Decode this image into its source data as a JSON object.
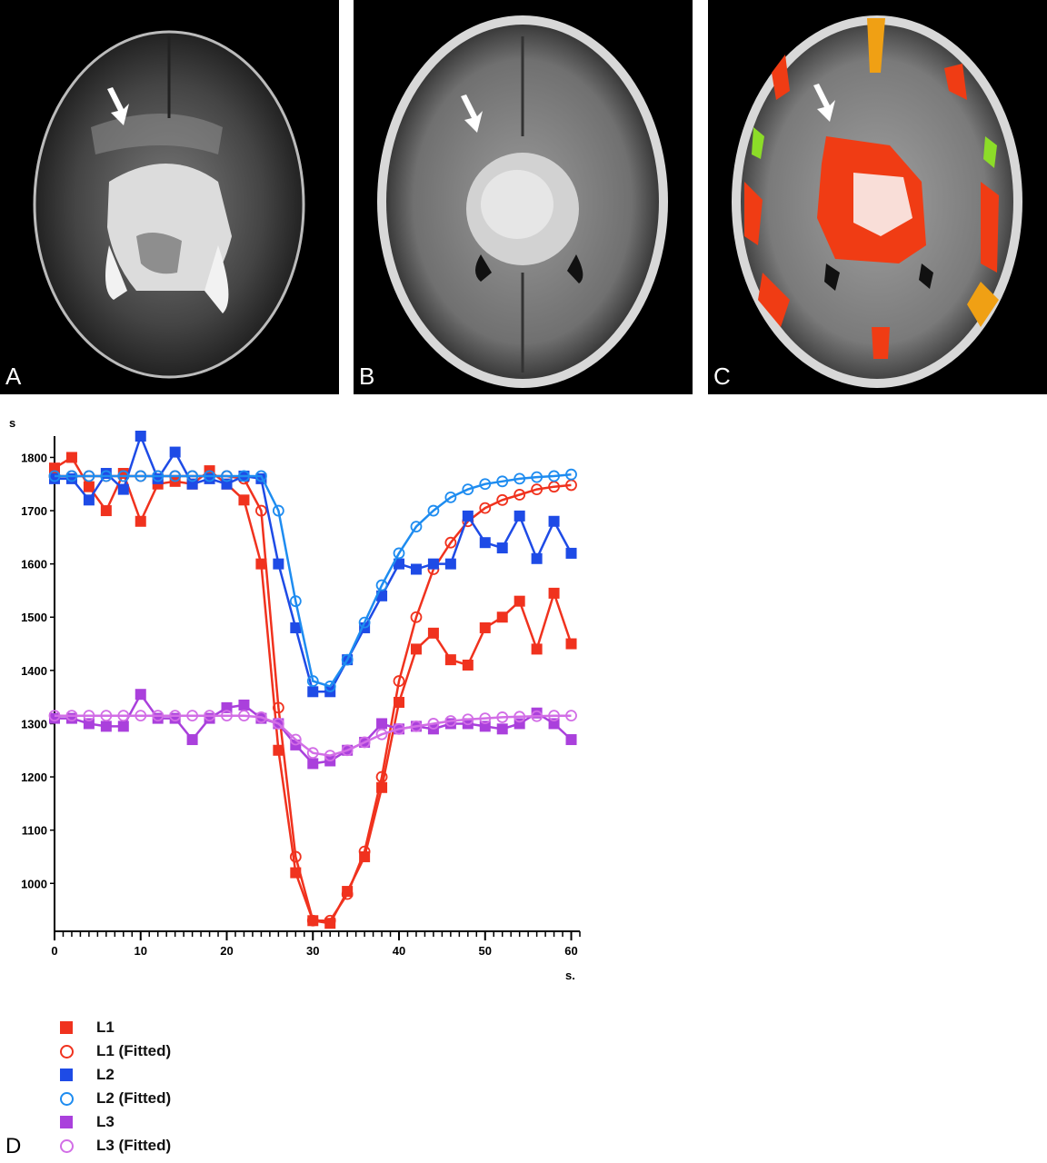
{
  "panels": {
    "a_label": "A",
    "b_label": "B",
    "c_label": "C",
    "d_label": "D"
  },
  "chart_data": {
    "type": "line",
    "title": "",
    "ylabel": "s",
    "xlabel": "s.",
    "xlim": [
      0,
      61
    ],
    "ylim": [
      910,
      1840
    ],
    "xticks": [
      0,
      10,
      20,
      30,
      40,
      50,
      60
    ],
    "yticks": [
      1000,
      1100,
      1200,
      1300,
      1400,
      1500,
      1600,
      1700,
      1800
    ],
    "x": [
      0,
      2,
      4,
      6,
      8,
      10,
      12,
      14,
      16,
      18,
      20,
      22,
      24,
      26,
      28,
      30,
      32,
      34,
      36,
      38,
      40,
      42,
      44,
      46,
      48,
      50,
      52,
      54,
      56,
      58,
      60
    ],
    "series": [
      {
        "name": "L1",
        "color": "#f0321e",
        "marker": "square",
        "values": [
          1780,
          1800,
          1745,
          1700,
          1770,
          1680,
          1750,
          1755,
          1750,
          1775,
          1750,
          1720,
          1600,
          1250,
          1020,
          930,
          925,
          985,
          1050,
          1180,
          1340,
          1440,
          1470,
          1420,
          1410,
          1480,
          1500,
          1530,
          1440,
          1545,
          1450
        ]
      },
      {
        "name": "L1 (Fitted)",
        "color": "#f0321e",
        "marker": "circle",
        "values": [
          1765,
          1765,
          1765,
          1765,
          1765,
          1765,
          1765,
          1765,
          1765,
          1765,
          1765,
          1760,
          1700,
          1330,
          1050,
          930,
          930,
          980,
          1060,
          1200,
          1380,
          1500,
          1590,
          1640,
          1680,
          1705,
          1720,
          1730,
          1740,
          1745,
          1748
        ]
      },
      {
        "name": "L2",
        "color": "#1e4be6",
        "marker": "square",
        "values": [
          1760,
          1760,
          1720,
          1770,
          1740,
          1840,
          1760,
          1810,
          1750,
          1760,
          1750,
          1765,
          1760,
          1600,
          1480,
          1360,
          1360,
          1420,
          1480,
          1540,
          1600,
          1590,
          1600,
          1600,
          1690,
          1640,
          1630,
          1690,
          1610,
          1680,
          1620
        ]
      },
      {
        "name": "L2 (Fitted)",
        "color": "#1e8cf0",
        "marker": "circle",
        "values": [
          1765,
          1765,
          1765,
          1765,
          1765,
          1765,
          1765,
          1765,
          1765,
          1765,
          1765,
          1765,
          1765,
          1700,
          1530,
          1380,
          1370,
          1420,
          1490,
          1560,
          1620,
          1670,
          1700,
          1725,
          1740,
          1750,
          1755,
          1760,
          1763,
          1765,
          1768
        ]
      },
      {
        "name": "L3",
        "color": "#aa40dc",
        "marker": "square",
        "values": [
          1310,
          1310,
          1300,
          1295,
          1295,
          1355,
          1310,
          1310,
          1270,
          1310,
          1330,
          1335,
          1310,
          1300,
          1260,
          1225,
          1230,
          1250,
          1265,
          1300,
          1290,
          1295,
          1290,
          1300,
          1300,
          1295,
          1290,
          1300,
          1320,
          1300,
          1270
        ]
      },
      {
        "name": "L3 (Fitted)",
        "color": "#d26ee6",
        "marker": "circle",
        "values": [
          1315,
          1315,
          1315,
          1315,
          1315,
          1315,
          1315,
          1315,
          1315,
          1315,
          1315,
          1315,
          1312,
          1300,
          1270,
          1245,
          1240,
          1250,
          1265,
          1280,
          1290,
          1295,
          1300,
          1305,
          1308,
          1310,
          1312,
          1313,
          1314,
          1315,
          1315
        ]
      }
    ]
  }
}
